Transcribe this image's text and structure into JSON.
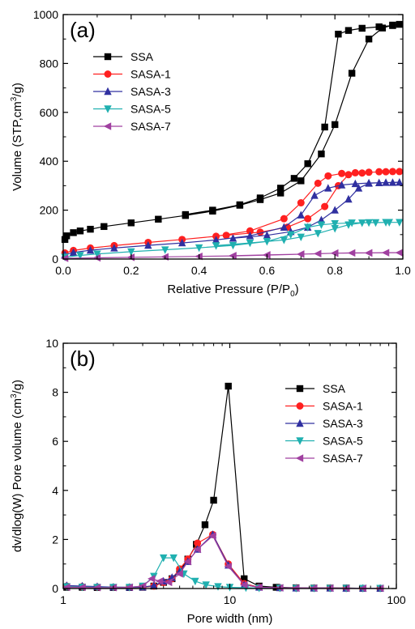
{
  "chart_data": [
    {
      "id": "a",
      "panel_label": "(a)",
      "type": "line",
      "x_scale": "linear",
      "xlabel": "Relative Pressure (P/P",
      "xlabel_sub": "0",
      "xlabel_end": ")",
      "ylabel": "Volume (STP,cm",
      "ylabel_sup": "3",
      "ylabel_end": "/g)",
      "xlim": [
        0,
        1.0
      ],
      "ylim": [
        0,
        1000
      ],
      "x_ticks": [
        0.0,
        0.2,
        0.4,
        0.6,
        0.8,
        1.0
      ],
      "x_tick_labels": [
        "0.0",
        "0.2",
        "0.4",
        "0.6",
        "0.8",
        "1.0"
      ],
      "y_ticks": [
        0,
        200,
        400,
        600,
        800,
        1000
      ],
      "y_tick_labels": [
        "0",
        "200",
        "400",
        "600",
        "800",
        "1000"
      ],
      "legend_position": "upper-left",
      "series": [
        {
          "name": "SSA",
          "color": "#000000",
          "marker": "square",
          "x": [
            0.005,
            0.01,
            0.03,
            0.05,
            0.08,
            0.12,
            0.2,
            0.28,
            0.36,
            0.44,
            0.52,
            0.58,
            0.64,
            0.7,
            0.76,
            0.8,
            0.85,
            0.9,
            0.94,
            0.97,
            0.99,
            0.97,
            0.93,
            0.88,
            0.84,
            0.81,
            0.77,
            0.72,
            0.68,
            0.64,
            0.58,
            0.52,
            0.44,
            0.36
          ],
          "y": [
            80,
            95,
            108,
            115,
            122,
            133,
            148,
            163,
            178,
            196,
            220,
            243,
            270,
            320,
            430,
            550,
            760,
            900,
            945,
            957,
            960,
            955,
            950,
            944,
            935,
            920,
            540,
            390,
            330,
            290,
            250,
            222,
            200,
            182
          ]
        },
        {
          "name": "SASA-1",
          "color": "#ff2020",
          "marker": "circle",
          "x": [
            0.005,
            0.03,
            0.08,
            0.15,
            0.25,
            0.35,
            0.45,
            0.55,
            0.65,
            0.7,
            0.75,
            0.78,
            0.82,
            0.86,
            0.9,
            0.95,
            0.99,
            0.97,
            0.93,
            0.88,
            0.84,
            0.81,
            0.77,
            0.72,
            0.66,
            0.58,
            0.48
          ],
          "y": [
            25,
            35,
            45,
            55,
            68,
            80,
            93,
            115,
            165,
            230,
            310,
            340,
            350,
            353,
            355,
            357,
            358,
            358,
            357,
            352,
            345,
            300,
            215,
            165,
            130,
            110,
            97
          ]
        },
        {
          "name": "SASA-3",
          "color": "#3030a0",
          "marker": "triangle-up",
          "x": [
            0.005,
            0.03,
            0.08,
            0.15,
            0.25,
            0.35,
            0.45,
            0.55,
            0.65,
            0.7,
            0.74,
            0.78,
            0.82,
            0.86,
            0.9,
            0.95,
            0.99,
            0.97,
            0.93,
            0.9,
            0.87,
            0.84,
            0.8,
            0.76,
            0.72,
            0.67,
            0.6,
            0.5
          ],
          "y": [
            18,
            27,
            36,
            45,
            56,
            66,
            78,
            95,
            130,
            180,
            260,
            290,
            303,
            308,
            311,
            313,
            314,
            313,
            312,
            310,
            290,
            245,
            200,
            160,
            130,
            112,
            97,
            85
          ]
        },
        {
          "name": "SASA-5",
          "color": "#20b0b0",
          "marker": "triangle-down",
          "x": [
            0.005,
            0.05,
            0.1,
            0.2,
            0.3,
            0.4,
            0.5,
            0.6,
            0.67,
            0.72,
            0.76,
            0.8,
            0.85,
            0.9,
            0.95,
            0.99,
            0.96,
            0.92,
            0.88,
            0.84,
            0.8,
            0.75,
            0.7,
            0.65,
            0.55,
            0.45
          ],
          "y": [
            8,
            15,
            21,
            30,
            38,
            46,
            56,
            72,
            100,
            130,
            140,
            145,
            148,
            149,
            150,
            150,
            150,
            149,
            148,
            140,
            125,
            105,
            90,
            78,
            66,
            55
          ]
        },
        {
          "name": "SASA-7",
          "color": "#a040a0",
          "marker": "triangle-left",
          "x": [
            0.005,
            0.1,
            0.2,
            0.3,
            0.4,
            0.5,
            0.6,
            0.7,
            0.75,
            0.8,
            0.85,
            0.9,
            0.95,
            0.99,
            0.9,
            0.8,
            0.7,
            0.6,
            0.5
          ],
          "y": [
            3,
            5,
            7,
            9,
            11,
            13,
            16,
            20,
            22,
            24,
            25,
            25,
            26,
            26,
            25,
            24,
            20,
            17,
            14
          ]
        }
      ]
    },
    {
      "id": "b",
      "panel_label": "(b)",
      "type": "line",
      "x_scale": "log",
      "xlabel": "Pore width (nm)",
      "ylabel": "dv/dlog(W) Pore volume (cm",
      "ylabel_sup": "3",
      "ylabel_end": "/g)",
      "xlim": [
        1,
        100
      ],
      "ylim": [
        0,
        10
      ],
      "x_ticks": [
        1,
        10,
        100
      ],
      "x_tick_labels": [
        "1",
        "10",
        "100"
      ],
      "y_ticks": [
        0,
        2,
        4,
        6,
        8,
        10
      ],
      "y_tick_labels": [
        "0",
        "2",
        "4",
        "6",
        "8",
        "10"
      ],
      "legend_position": "upper-right",
      "series": [
        {
          "name": "SSA",
          "color": "#000000",
          "marker": "square",
          "x": [
            1.05,
            1.3,
            1.6,
            2.0,
            2.5,
            3.0,
            3.5,
            4.0,
            4.5,
            5.0,
            5.6,
            6.3,
            7.1,
            8.0,
            9.8,
            12.2,
            15,
            19,
            25,
            32,
            40,
            50,
            63,
            80
          ],
          "y": [
            0.05,
            0.05,
            0.04,
            0.04,
            0.04,
            0.05,
            0.1,
            0.25,
            0.4,
            0.7,
            1.2,
            1.8,
            2.6,
            3.6,
            8.25,
            0.4,
            0.1,
            0.05,
            0.03,
            0.02,
            0.02,
            0.02,
            0.01,
            0.01
          ]
        },
        {
          "name": "SASA-1",
          "color": "#ff2020",
          "marker": "circle",
          "x": [
            1.05,
            1.3,
            1.6,
            2.0,
            2.5,
            3.0,
            3.5,
            4.0,
            4.5,
            5.0,
            5.6,
            6.4,
            7.9,
            9.8,
            12.2,
            15,
            20,
            25,
            32,
            40,
            50,
            63,
            80
          ],
          "y": [
            0.1,
            0.08,
            0.06,
            0.05,
            0.05,
            0.06,
            0.1,
            0.25,
            0.4,
            0.8,
            1.2,
            1.85,
            2.2,
            1.0,
            0.2,
            0.05,
            0.03,
            0.02,
            0.02,
            0.02,
            0.01,
            0.01,
            0.01
          ]
        },
        {
          "name": "SASA-3",
          "color": "#3030a0",
          "marker": "triangle-up",
          "x": [
            1.05,
            1.3,
            1.6,
            2.0,
            2.5,
            3.0,
            3.5,
            4.0,
            4.5,
            5.0,
            5.6,
            6.4,
            7.9,
            9.8,
            12.2,
            15,
            20,
            25,
            32,
            40,
            50,
            63,
            80
          ],
          "y": [
            0.12,
            0.1,
            0.08,
            0.06,
            0.05,
            0.06,
            0.12,
            0.3,
            0.45,
            0.7,
            1.1,
            1.6,
            2.2,
            0.95,
            0.15,
            0.05,
            0.03,
            0.02,
            0.02,
            0.02,
            0.01,
            0.01,
            0.01
          ]
        },
        {
          "name": "SASA-5",
          "color": "#20b0b0",
          "marker": "triangle-down",
          "x": [
            1.05,
            1.3,
            1.6,
            2.0,
            2.5,
            3.0,
            3.5,
            4.0,
            4.6,
            5.3,
            6.2,
            7.2,
            8.5,
            10,
            12.5,
            15,
            20,
            25,
            32,
            40,
            50,
            63,
            80
          ],
          "y": [
            0.08,
            0.06,
            0.05,
            0.05,
            0.05,
            0.1,
            0.5,
            1.25,
            1.25,
            0.6,
            0.3,
            0.15,
            0.08,
            0.05,
            0.03,
            0.02,
            0.02,
            0.01,
            0.01,
            0.01,
            0.01,
            0.01,
            0.01
          ]
        },
        {
          "name": "SASA-7",
          "color": "#a040a0",
          "marker": "triangle-left",
          "x": [
            1.05,
            1.3,
            1.6,
            2.0,
            2.5,
            3.0,
            3.4,
            3.8,
            4.3,
            5.0,
            5.6,
            6.4,
            7.9,
            9.8,
            12.2,
            15,
            20,
            25,
            32,
            40,
            50,
            63,
            80
          ],
          "y": [
            0.05,
            0.05,
            0.04,
            0.04,
            0.05,
            0.1,
            0.4,
            0.3,
            0.25,
            0.6,
            1.1,
            1.6,
            2.15,
            0.9,
            0.15,
            0.05,
            0.03,
            0.02,
            0.02,
            0.02,
            0.01,
            0.01,
            0.01
          ]
        }
      ]
    }
  ]
}
